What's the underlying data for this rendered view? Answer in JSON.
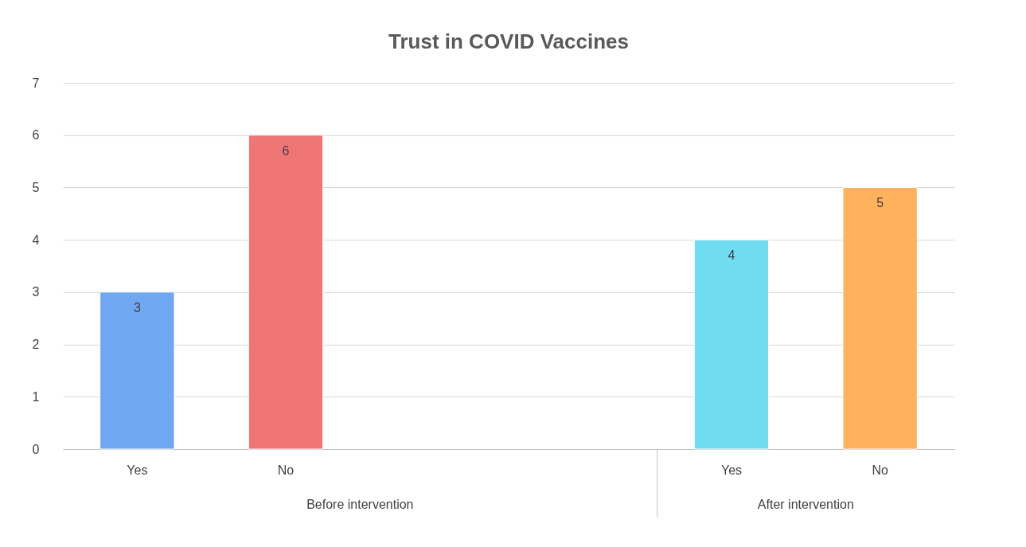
{
  "chart_data": {
    "type": "bar",
    "title": "Trust in COVID Vaccines",
    "categories": [
      "Yes",
      "No",
      null,
      null,
      "Yes",
      "No"
    ],
    "values": [
      3,
      6,
      null,
      null,
      4,
      5
    ],
    "colors": [
      "#6fa8f0",
      "#f07575",
      null,
      null,
      "#6fdcef",
      "#ffb25e"
    ],
    "ylim": [
      0,
      7
    ],
    "yticks": [
      0,
      1,
      2,
      3,
      4,
      5,
      6,
      7
    ],
    "grid": "y",
    "data_labels": true,
    "annotations": [
      "Before intervention",
      "After intervention"
    ]
  }
}
